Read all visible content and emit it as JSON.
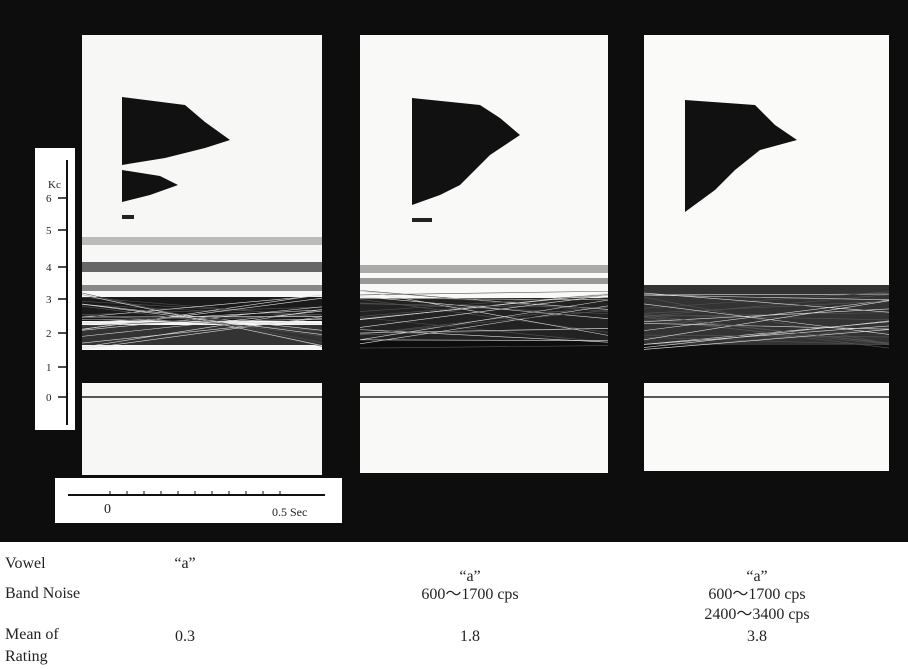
{
  "figure": {
    "frequency_axis": {
      "unit": "Kc",
      "ticks": [
        "6",
        "5",
        "4",
        "3",
        "2",
        "1",
        "0"
      ]
    },
    "time_axis": {
      "ticks": [
        "0",
        "0.5 Sec"
      ]
    }
  },
  "table": {
    "row_labels": {
      "vowel": "Vowel",
      "band_noise": "Band Noise",
      "rating": [
        "Mean of",
        "Rating"
      ]
    },
    "conditions": [
      {
        "vowel": "“a”",
        "rating": 0.3
      },
      {
        "vowel": "“a”",
        "band_noise": [
          "600～1700 cps"
        ],
        "rating": 1.8
      },
      {
        "vowel": "“a”",
        "band_noise": [
          "600～1700 cps",
          "2400～3400 cps"
        ],
        "rating": 3.8
      }
    ]
  }
}
